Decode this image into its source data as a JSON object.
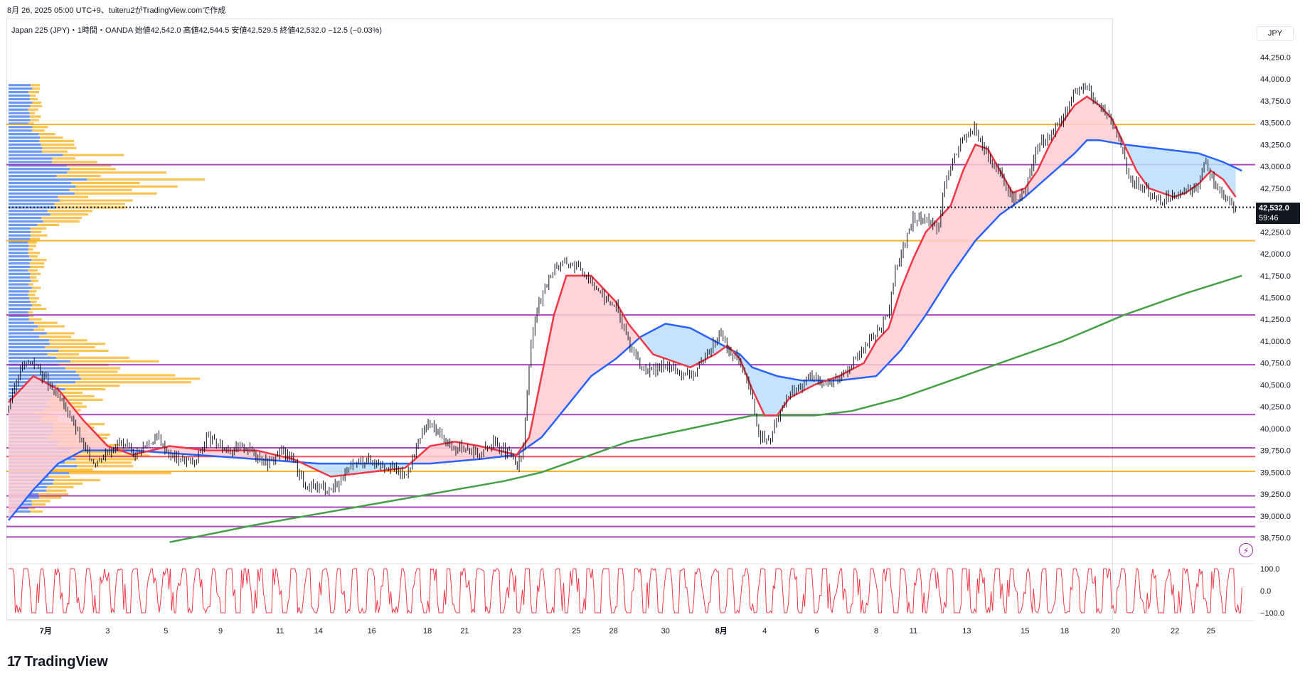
{
  "header": {
    "caption": "8月 26, 2025 05:00 UTC+9、tuiteru2がTradingView.comで作成"
  },
  "legend": {
    "symbol": "Japan 225 (JPY)・1時間・OANDA",
    "open": "始値42,542.0",
    "high": "高値42,544.5",
    "low": "安値42,529.5",
    "close": "終値42,532.0",
    "change": "−12.5 (−0.03%)"
  },
  "currency": "JPY",
  "last_price": {
    "price": "42,532.0",
    "countdown": "59:46"
  },
  "brand": {
    "logo_text": "TradingView",
    "logo_mark": "17"
  },
  "colors": {
    "ema_fast": "#f23645",
    "ema_mid": "#2962ff",
    "ema_slow": "#43a047",
    "bull_fill": "#ffcdd2",
    "bear_fill": "#bbdefb",
    "level_purple": "#9c27b0",
    "level_orange": "#f7a600",
    "vp_blue": "#5b8def",
    "vp_orange": "#f9b934",
    "oscillator": "#f23645"
  },
  "chart_data": {
    "type": "line",
    "title": "Japan 225 (JPY)",
    "currency": "JPY",
    "timeframe": "1時間",
    "ylim": [
      38600,
      44400
    ],
    "y_ticks": [
      "44,250.0",
      "44,000.0",
      "43,750.0",
      "43,500.0",
      "43,250.0",
      "43,000.0",
      "42,750.0",
      "42,500.0",
      "42,250.0",
      "42,000.0",
      "41,750.0",
      "41,500.0",
      "41,250.0",
      "41,000.0",
      "40,750.0",
      "40,500.0",
      "40,250.0",
      "40,000.0",
      "39,750.0",
      "39,500.0",
      "39,250.0",
      "39,000.0",
      "38,750.0"
    ],
    "x_ticks": [
      "7月",
      "3",
      "5",
      "9",
      "11",
      "14",
      "16",
      "18",
      "21",
      "23",
      "25",
      "28",
      "30",
      "8月",
      "4",
      "6",
      "8",
      "11",
      "13",
      "15",
      "18",
      "20",
      "22",
      "25"
    ],
    "x_tick_pos": [
      0.03,
      0.08,
      0.127,
      0.171,
      0.219,
      0.25,
      0.293,
      0.338,
      0.368,
      0.41,
      0.458,
      0.488,
      0.53,
      0.575,
      0.61,
      0.652,
      0.7,
      0.73,
      0.773,
      0.82,
      0.852,
      0.893,
      0.941,
      0.97
    ],
    "price_path": [
      [
        0,
        40250
      ],
      [
        0.01,
        40700
      ],
      [
        0.02,
        40780
      ],
      [
        0.03,
        40550
      ],
      [
        0.04,
        40350
      ],
      [
        0.05,
        40150
      ],
      [
        0.06,
        39800
      ],
      [
        0.07,
        39600
      ],
      [
        0.08,
        39750
      ],
      [
        0.09,
        39850
      ],
      [
        0.1,
        39700
      ],
      [
        0.11,
        39800
      ],
      [
        0.12,
        39900
      ],
      [
        0.13,
        39700
      ],
      [
        0.14,
        39650
      ],
      [
        0.15,
        39600
      ],
      [
        0.16,
        39900
      ],
      [
        0.17,
        39800
      ],
      [
        0.18,
        39750
      ],
      [
        0.19,
        39800
      ],
      [
        0.2,
        39700
      ],
      [
        0.21,
        39600
      ],
      [
        0.22,
        39750
      ],
      [
        0.23,
        39650
      ],
      [
        0.24,
        39300
      ],
      [
        0.25,
        39350
      ],
      [
        0.26,
        39300
      ],
      [
        0.27,
        39450
      ],
      [
        0.28,
        39600
      ],
      [
        0.29,
        39650
      ],
      [
        0.3,
        39600
      ],
      [
        0.31,
        39550
      ],
      [
        0.32,
        39450
      ],
      [
        0.33,
        39800
      ],
      [
        0.335,
        40000
      ],
      [
        0.34,
        40050
      ],
      [
        0.35,
        39900
      ],
      [
        0.36,
        39750
      ],
      [
        0.37,
        39800
      ],
      [
        0.38,
        39700
      ],
      [
        0.39,
        39850
      ],
      [
        0.4,
        39750
      ],
      [
        0.405,
        39700
      ],
      [
        0.41,
        39550
      ],
      [
        0.415,
        39750
      ],
      [
        0.42,
        40750
      ],
      [
        0.425,
        41300
      ],
      [
        0.43,
        41500
      ],
      [
        0.44,
        41850
      ],
      [
        0.45,
        41900
      ],
      [
        0.46,
        41850
      ],
      [
        0.47,
        41700
      ],
      [
        0.48,
        41500
      ],
      [
        0.49,
        41400
      ],
      [
        0.5,
        41000
      ],
      [
        0.51,
        40700
      ],
      [
        0.52,
        40650
      ],
      [
        0.53,
        40750
      ],
      [
        0.54,
        40650
      ],
      [
        0.55,
        40600
      ],
      [
        0.56,
        40750
      ],
      [
        0.57,
        41000
      ],
      [
        0.575,
        41100
      ],
      [
        0.58,
        40900
      ],
      [
        0.59,
        40750
      ],
      [
        0.6,
        40350
      ],
      [
        0.605,
        39950
      ],
      [
        0.61,
        39850
      ],
      [
        0.615,
        39900
      ],
      [
        0.62,
        40100
      ],
      [
        0.63,
        40400
      ],
      [
        0.64,
        40500
      ],
      [
        0.65,
        40600
      ],
      [
        0.66,
        40500
      ],
      [
        0.67,
        40600
      ],
      [
        0.68,
        40750
      ],
      [
        0.69,
        40900
      ],
      [
        0.7,
        41100
      ],
      [
        0.71,
        41300
      ],
      [
        0.715,
        41800
      ],
      [
        0.72,
        42000
      ],
      [
        0.73,
        42400
      ],
      [
        0.74,
        42400
      ],
      [
        0.75,
        42300
      ],
      [
        0.755,
        42800
      ],
      [
        0.76,
        43000
      ],
      [
        0.77,
        43300
      ],
      [
        0.78,
        43450
      ],
      [
        0.79,
        43100
      ],
      [
        0.8,
        42900
      ],
      [
        0.81,
        42600
      ],
      [
        0.82,
        42700
      ],
      [
        0.83,
        43250
      ],
      [
        0.84,
        43350
      ],
      [
        0.85,
        43550
      ],
      [
        0.86,
        43850
      ],
      [
        0.87,
        43900
      ],
      [
        0.88,
        43700
      ],
      [
        0.89,
        43500
      ],
      [
        0.9,
        43150
      ],
      [
        0.905,
        42800
      ],
      [
        0.91,
        42800
      ],
      [
        0.92,
        42700
      ],
      [
        0.93,
        42600
      ],
      [
        0.94,
        42700
      ],
      [
        0.95,
        42700
      ],
      [
        0.96,
        42800
      ],
      [
        0.965,
        43100
      ],
      [
        0.97,
        42900
      ],
      [
        0.98,
        42650
      ],
      [
        0.99,
        42532
      ]
    ],
    "ema_fast_path": [
      [
        0,
        40300
      ],
      [
        0.02,
        40600
      ],
      [
        0.04,
        40450
      ],
      [
        0.06,
        40100
      ],
      [
        0.08,
        39800
      ],
      [
        0.1,
        39700
      ],
      [
        0.13,
        39800
      ],
      [
        0.16,
        39750
      ],
      [
        0.2,
        39750
      ],
      [
        0.23,
        39650
      ],
      [
        0.26,
        39450
      ],
      [
        0.29,
        39500
      ],
      [
        0.32,
        39550
      ],
      [
        0.34,
        39800
      ],
      [
        0.36,
        39850
      ],
      [
        0.38,
        39800
      ],
      [
        0.41,
        39700
      ],
      [
        0.42,
        39900
      ],
      [
        0.43,
        40600
      ],
      [
        0.44,
        41300
      ],
      [
        0.45,
        41750
      ],
      [
        0.47,
        41750
      ],
      [
        0.49,
        41450
      ],
      [
        0.5,
        41200
      ],
      [
        0.52,
        40850
      ],
      [
        0.55,
        40700
      ],
      [
        0.57,
        40850
      ],
      [
        0.58,
        40950
      ],
      [
        0.59,
        40800
      ],
      [
        0.6,
        40450
      ],
      [
        0.61,
        40150
      ],
      [
        0.62,
        40150
      ],
      [
        0.63,
        40350
      ],
      [
        0.65,
        40500
      ],
      [
        0.67,
        40600
      ],
      [
        0.69,
        40750
      ],
      [
        0.7,
        41000
      ],
      [
        0.71,
        41150
      ],
      [
        0.72,
        41600
      ],
      [
        0.73,
        41950
      ],
      [
        0.74,
        42250
      ],
      [
        0.76,
        42550
      ],
      [
        0.77,
        42950
      ],
      [
        0.78,
        43250
      ],
      [
        0.79,
        43200
      ],
      [
        0.8,
        42950
      ],
      [
        0.81,
        42700
      ],
      [
        0.82,
        42750
      ],
      [
        0.83,
        42950
      ],
      [
        0.84,
        43250
      ],
      [
        0.85,
        43500
      ],
      [
        0.86,
        43700
      ],
      [
        0.87,
        43800
      ],
      [
        0.88,
        43700
      ],
      [
        0.89,
        43550
      ],
      [
        0.9,
        43250
      ],
      [
        0.91,
        42950
      ],
      [
        0.92,
        42750
      ],
      [
        0.93,
        42700
      ],
      [
        0.94,
        42650
      ],
      [
        0.95,
        42700
      ],
      [
        0.96,
        42800
      ],
      [
        0.97,
        42950
      ],
      [
        0.98,
        42850
      ],
      [
        0.99,
        42650
      ]
    ],
    "ema_mid_path": [
      [
        0,
        38950
      ],
      [
        0.02,
        39300
      ],
      [
        0.04,
        39600
      ],
      [
        0.06,
        39750
      ],
      [
        0.1,
        39750
      ],
      [
        0.15,
        39700
      ],
      [
        0.2,
        39650
      ],
      [
        0.25,
        39600
      ],
      [
        0.3,
        39600
      ],
      [
        0.34,
        39600
      ],
      [
        0.38,
        39650
      ],
      [
        0.41,
        39700
      ],
      [
        0.43,
        39900
      ],
      [
        0.45,
        40250
      ],
      [
        0.47,
        40600
      ],
      [
        0.49,
        40800
      ],
      [
        0.51,
        41050
      ],
      [
        0.53,
        41200
      ],
      [
        0.55,
        41150
      ],
      [
        0.57,
        41000
      ],
      [
        0.59,
        40850
      ],
      [
        0.6,
        40700
      ],
      [
        0.62,
        40600
      ],
      [
        0.64,
        40550
      ],
      [
        0.67,
        40550
      ],
      [
        0.7,
        40600
      ],
      [
        0.72,
        40900
      ],
      [
        0.74,
        41300
      ],
      [
        0.76,
        41750
      ],
      [
        0.78,
        42150
      ],
      [
        0.8,
        42450
      ],
      [
        0.82,
        42650
      ],
      [
        0.84,
        42900
      ],
      [
        0.86,
        43150
      ],
      [
        0.87,
        43300
      ],
      [
        0.88,
        43300
      ],
      [
        0.9,
        43250
      ],
      [
        0.93,
        43200
      ],
      [
        0.96,
        43150
      ],
      [
        0.98,
        43050
      ],
      [
        0.995,
        42950
      ]
    ],
    "ema_slow_path": [
      [
        0.13,
        38700
      ],
      [
        0.2,
        38900
      ],
      [
        0.3,
        39150
      ],
      [
        0.4,
        39400
      ],
      [
        0.43,
        39500
      ],
      [
        0.47,
        39700
      ],
      [
        0.5,
        39850
      ],
      [
        0.55,
        40000
      ],
      [
        0.6,
        40150
      ],
      [
        0.65,
        40150
      ],
      [
        0.68,
        40200
      ],
      [
        0.72,
        40350
      ],
      [
        0.76,
        40550
      ],
      [
        0.8,
        40750
      ],
      [
        0.85,
        41000
      ],
      [
        0.9,
        41300
      ],
      [
        0.95,
        41550
      ],
      [
        0.995,
        41750
      ]
    ],
    "horizontal_levels": [
      {
        "price": 43480,
        "color": "#f7a600"
      },
      {
        "price": 43020,
        "color": "#9c27b0"
      },
      {
        "price": 42150,
        "color": "#f7a600"
      },
      {
        "price": 41300,
        "color": "#9c27b0"
      },
      {
        "price": 40730,
        "color": "#9c27b0"
      },
      {
        "price": 40160,
        "color": "#9c27b0"
      },
      {
        "price": 39780,
        "color": "#9c27b0"
      },
      {
        "price": 39680,
        "color": "#f23645"
      },
      {
        "price": 39510,
        "color": "#f7a600"
      },
      {
        "price": 39230,
        "color": "#9c27b0"
      },
      {
        "price": 39100,
        "color": "#9c27b0"
      },
      {
        "price": 38990,
        "color": "#9c27b0"
      },
      {
        "price": 38880,
        "color": "#9c27b0"
      },
      {
        "price": 38760,
        "color": "#9c27b0"
      }
    ],
    "last_price": 42532,
    "oscillator": {
      "ylim": [
        -100,
        100
      ],
      "y_ticks": [
        "100.0",
        "0.0",
        "−100.0"
      ]
    }
  }
}
